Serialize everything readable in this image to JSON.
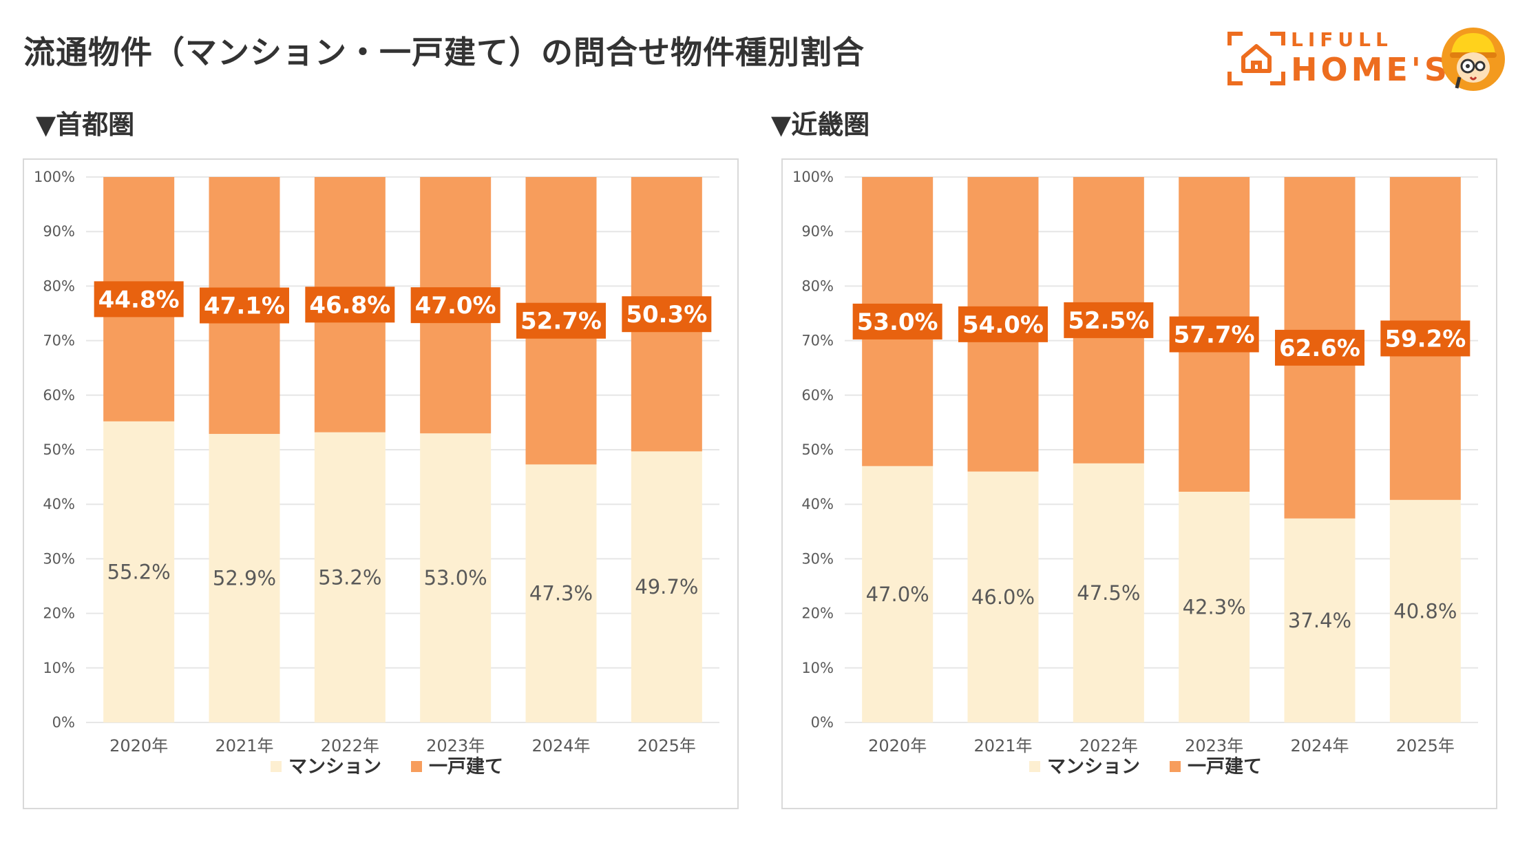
{
  "page": {
    "title": "流通物件（マンション・一戸建て）の問合せ物件種別割合"
  },
  "logo": {
    "line1": "LIFULL",
    "line2": "HOME'S",
    "color": "#ed6d1f"
  },
  "colors": {
    "mansion": "#fdefd1",
    "house": "#f79d5c",
    "label_box": "#e8620f",
    "grid": "#e6e6e6"
  },
  "chart_data": [
    {
      "type": "bar",
      "stacked": true,
      "title": "▼首都圏",
      "categories": [
        "2020年",
        "2021年",
        "2022年",
        "2023年",
        "2024年",
        "2025年"
      ],
      "series": [
        {
          "name": "マンション",
          "values": [
            55.2,
            52.9,
            53.2,
            53.0,
            47.3,
            49.7
          ],
          "labels": [
            "55.2%",
            "52.9%",
            "53.2%",
            "53.0%",
            "47.3%",
            "49.7%"
          ]
        },
        {
          "name": "一戸建て",
          "values": [
            44.8,
            47.1,
            46.8,
            47.0,
            52.7,
            50.3
          ],
          "labels": [
            "44.8%",
            "47.1%",
            "46.8%",
            "47.0%",
            "52.7%",
            "50.3%"
          ]
        }
      ],
      "ylim": [
        0,
        100
      ],
      "yticks": [
        "0%",
        "10%",
        "20%",
        "30%",
        "40%",
        "50%",
        "60%",
        "70%",
        "80%",
        "90%",
        "100%"
      ],
      "grid": true,
      "legend_position": "bottom"
    },
    {
      "type": "bar",
      "stacked": true,
      "title": "▼近畿圏",
      "categories": [
        "2020年",
        "2021年",
        "2022年",
        "2023年",
        "2024年",
        "2025年"
      ],
      "series": [
        {
          "name": "マンション",
          "values": [
            47.0,
            46.0,
            47.5,
            42.3,
            37.4,
            40.8
          ],
          "labels": [
            "47.0%",
            "46.0%",
            "47.5%",
            "42.3%",
            "37.4%",
            "40.8%"
          ]
        },
        {
          "name": "一戸建て",
          "values": [
            53.0,
            54.0,
            52.5,
            57.7,
            62.6,
            59.2
          ],
          "labels": [
            "53.0%",
            "54.0%",
            "52.5%",
            "57.7%",
            "62.6%",
            "59.2%"
          ]
        }
      ],
      "ylim": [
        0,
        100
      ],
      "yticks": [
        "0%",
        "10%",
        "20%",
        "30%",
        "40%",
        "50%",
        "60%",
        "70%",
        "80%",
        "90%",
        "100%"
      ],
      "grid": true,
      "legend_position": "bottom"
    }
  ]
}
